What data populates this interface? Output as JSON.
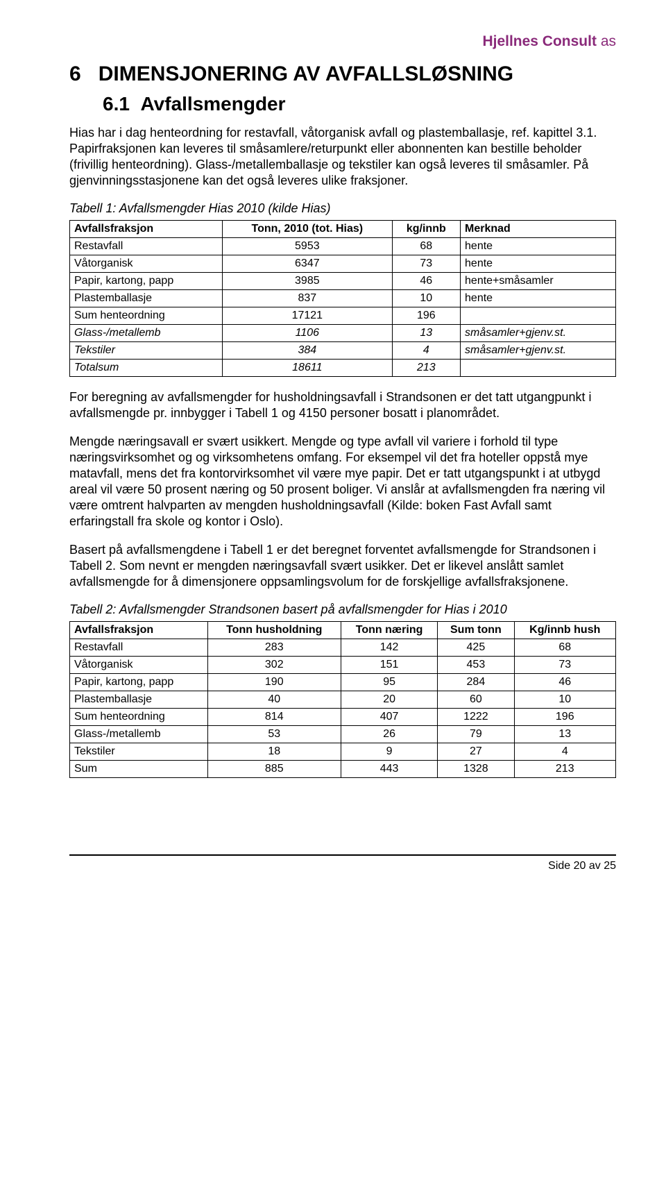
{
  "brand": {
    "name": "Hjellnes Consult",
    "suffix": "as",
    "color": "#8a2a7a"
  },
  "section": {
    "number": "6",
    "title": "DIMENSJONERING AV AVFALLSLØSNING"
  },
  "subsection": {
    "number": "6.1",
    "title": "Avfallsmengder"
  },
  "paragraphs": {
    "p1": "Hias har i dag henteordning for restavfall, våtorganisk avfall og plastemballasje, ref. kapittel 3.1. Papirfraksjonen kan leveres til småsamlere/returpunkt eller abonnenten kan bestille beholder (frivillig henteordning). Glass-/metallemballasje og tekstiler kan også leveres til småsamler. På gjenvinningsstasjonene kan det også leveres ulike fraksjoner.",
    "p2": "For beregning av avfallsmengder for husholdningsavfall i Strandsonen er det tatt utgangpunkt i avfallsmengde pr. innbygger i Tabell 1 og 4150 personer bosatt i planområdet.",
    "p3": "Mengde næringsavall er svært usikkert. Mengde og type avfall vil variere i forhold til type næringsvirksomhet og og virksomhetens omfang. For eksempel vil det fra hoteller oppstå mye matavfall, mens det fra kontorvirksomhet vil være mye papir. Det er tatt utgangspunkt i at utbygd areal vil være 50 prosent næring og 50 prosent boliger. Vi anslår at avfallsmengden fra næring vil være omtrent halvparten av mengden husholdningsavfall (Kilde: boken Fast Avfall samt erfaringstall fra skole og kontor i Oslo).",
    "p4": "Basert på avfallsmengdene i Tabell 1 er det beregnet forventet avfallsmengde for Strandsonen i Tabell 2. Som nevnt er mengden næringsavfall svært usikker. Det er likevel anslått samlet avfallsmengde for å dimensjonere oppsamlingsvolum for de forskjellige avfallsfraksjonene."
  },
  "table1": {
    "caption": "Tabell 1: Avfallsmengder Hias 2010 (kilde Hias)",
    "columns": [
      "Avfallsfraksjon",
      "Tonn, 2010 (tot. Hias)",
      "kg/innb",
      "Merknad"
    ],
    "col_align": [
      "left",
      "center",
      "center",
      "left"
    ],
    "rows": [
      {
        "cells": [
          "Restavfall",
          "5953",
          "68",
          "hente"
        ],
        "italic": false
      },
      {
        "cells": [
          "Våtorganisk",
          "6347",
          "73",
          "hente"
        ],
        "italic": false
      },
      {
        "cells": [
          "Papir, kartong, papp",
          "3985",
          "46",
          "hente+småsamler"
        ],
        "italic": false
      },
      {
        "cells": [
          "Plastemballasje",
          "837",
          "10",
          "hente"
        ],
        "italic": false
      },
      {
        "cells": [
          "Sum henteordning",
          "17121",
          "196",
          ""
        ],
        "italic": false
      },
      {
        "cells": [
          "Glass-/metallemb",
          "1106",
          "13",
          "småsamler+gjenv.st."
        ],
        "italic": true
      },
      {
        "cells": [
          "Tekstiler",
          "384",
          "4",
          "småsamler+gjenv.st."
        ],
        "italic": true
      },
      {
        "cells": [
          "Totalsum",
          "18611",
          "213",
          ""
        ],
        "italic": true
      }
    ]
  },
  "table2": {
    "caption": "Tabell 2: Avfallsmengder Strandsonen basert på avfallsmengder for Hias i 2010",
    "columns": [
      "Avfallsfraksjon",
      "Tonn husholdning",
      "Tonn næring",
      "Sum tonn",
      "Kg/innb hush"
    ],
    "col_align": [
      "left",
      "center",
      "center",
      "center",
      "center"
    ],
    "rows": [
      {
        "cells": [
          "Restavfall",
          "283",
          "142",
          "425",
          "68"
        ],
        "italic": false
      },
      {
        "cells": [
          "Våtorganisk",
          "302",
          "151",
          "453",
          "73"
        ],
        "italic": false
      },
      {
        "cells": [
          "Papir, kartong, papp",
          "190",
          "95",
          "284",
          "46"
        ],
        "italic": false
      },
      {
        "cells": [
          "Plastemballasje",
          "40",
          "20",
          "60",
          "10"
        ],
        "italic": false
      },
      {
        "cells": [
          "Sum henteordning",
          "814",
          "407",
          "1222",
          "196"
        ],
        "italic": false
      },
      {
        "cells": [
          "Glass-/metallemb",
          "53",
          "26",
          "79",
          "13"
        ],
        "italic": false
      },
      {
        "cells": [
          "Tekstiler",
          "18",
          "9",
          "27",
          "4"
        ],
        "italic": false
      },
      {
        "cells": [
          "Sum",
          "885",
          "443",
          "1328",
          "213"
        ],
        "italic": false
      }
    ]
  },
  "footer": {
    "text": "Side 20 av 25"
  }
}
